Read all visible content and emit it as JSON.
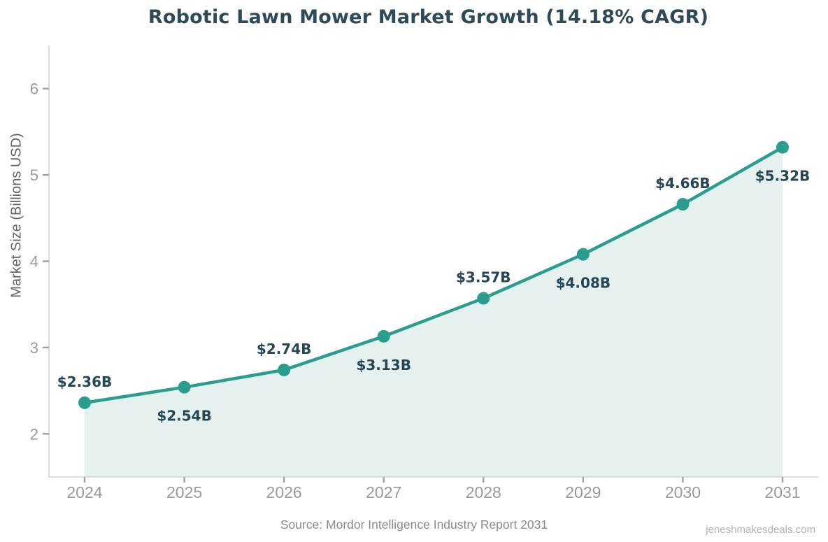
{
  "title": "Robotic Lawn Mower Market Growth (14.18% CAGR)",
  "chart_data": {
    "type": "area",
    "x": [
      "2024",
      "2025",
      "2026",
      "2027",
      "2028",
      "2029",
      "2030",
      "2031"
    ],
    "values": [
      2.36,
      2.54,
      2.74,
      3.13,
      3.57,
      4.08,
      4.66,
      5.32
    ],
    "point_labels": [
      "$2.36B",
      "$2.54B",
      "$2.74B",
      "$3.13B",
      "$3.57B",
      "$4.08B",
      "$4.66B",
      "$5.32B"
    ],
    "label_positions": [
      "above",
      "below",
      "above",
      "below",
      "above",
      "below",
      "above",
      "below"
    ],
    "title": "Robotic Lawn Mower Market Growth (14.18% CAGR)",
    "xlabel": "",
    "ylabel": "Market Size (Billions USD)",
    "yticks": [
      2,
      3,
      4,
      5,
      6
    ],
    "ylim": [
      1.5,
      6.5
    ],
    "grid": false,
    "legend": "none",
    "colors": {
      "line": "#2a9d8f",
      "marker": "#2a9d8f",
      "area_fill": "#e4f1ee",
      "point_label": "#264653",
      "title_text": "#2e4a57",
      "tick_label": "#9a9a9a",
      "axis_label": "#626262",
      "spine": "#d9d9d9",
      "tick_mark": "#a0a0a0"
    }
  },
  "footer": {
    "source": "Source: Mordor Intelligence Industry Report 2031",
    "watermark": "jeneshmakesdeals.com"
  }
}
